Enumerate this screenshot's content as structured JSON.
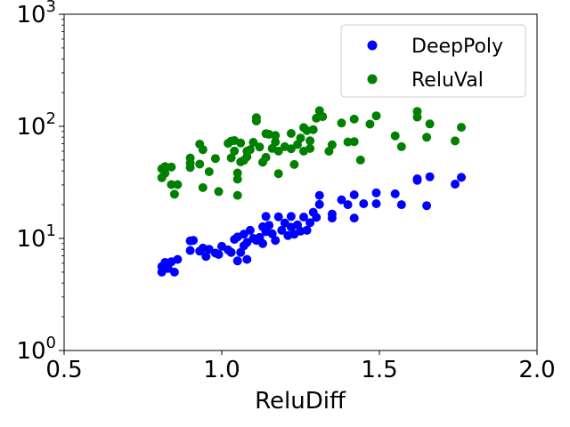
{
  "chart_data": {
    "type": "scatter",
    "xlabel": "ReluDiff",
    "ylabel": "",
    "xlim": [
      0.5,
      2.0
    ],
    "ylim": [
      1,
      1000
    ],
    "yscale": "log",
    "x_ticks": [
      0.5,
      1.0,
      1.5,
      2.0
    ],
    "x_tick_labels": [
      "0.5",
      "1.0",
      "1.5",
      "2.0"
    ],
    "y_tick_labels": [
      {
        "base": "10",
        "exp": "0",
        "value": 1
      },
      {
        "base": "10",
        "exp": "1",
        "value": 10
      },
      {
        "base": "10",
        "exp": "2",
        "value": 100
      },
      {
        "base": "10",
        "exp": "3",
        "value": 1000
      }
    ],
    "grid": false,
    "legend": "top-right",
    "series": [
      {
        "name": "DeepPoly",
        "color": "#0000ff",
        "points": [
          [
            0.81,
            5.0
          ],
          [
            0.81,
            5.6
          ],
          [
            0.82,
            6.1
          ],
          [
            0.83,
            5.4
          ],
          [
            0.84,
            6.2
          ],
          [
            0.85,
            5.0
          ],
          [
            0.86,
            6.5
          ],
          [
            0.9,
            7.8
          ],
          [
            0.9,
            9.5
          ],
          [
            0.91,
            9.6
          ],
          [
            0.93,
            7.7
          ],
          [
            0.94,
            8.2
          ],
          [
            0.95,
            6.9
          ],
          [
            0.96,
            8.0
          ],
          [
            0.98,
            7.4
          ],
          [
            0.99,
            7.2
          ],
          [
            1.0,
            8.5
          ],
          [
            1.02,
            7.9
          ],
          [
            1.03,
            7.5
          ],
          [
            1.04,
            9.8
          ],
          [
            1.05,
            10.3
          ],
          [
            1.05,
            6.3
          ],
          [
            1.06,
            7.5
          ],
          [
            1.07,
            8.6
          ],
          [
            1.07,
            10.9
          ],
          [
            1.08,
            6.5
          ],
          [
            1.08,
            9.2
          ],
          [
            1.09,
            11.8
          ],
          [
            1.1,
            10.0
          ],
          [
            1.11,
            9.6
          ],
          [
            1.12,
            10.2
          ],
          [
            1.13,
            12.7
          ],
          [
            1.13,
            9.0
          ],
          [
            1.14,
            11.5
          ],
          [
            1.14,
            15.7
          ],
          [
            1.15,
            13.1
          ],
          [
            1.16,
            11.0
          ],
          [
            1.17,
            9.6
          ],
          [
            1.18,
            15.6
          ],
          [
            1.19,
            11.8
          ],
          [
            1.2,
            13.7
          ],
          [
            1.21,
            10.6
          ],
          [
            1.22,
            15.7
          ],
          [
            1.22,
            12.6
          ],
          [
            1.23,
            10.9
          ],
          [
            1.24,
            13.2
          ],
          [
            1.25,
            11.6
          ],
          [
            1.26,
            15.5
          ],
          [
            1.27,
            11.8
          ],
          [
            1.28,
            13.8
          ],
          [
            1.29,
            17.1
          ],
          [
            1.3,
            15.4
          ],
          [
            1.31,
            20.1
          ],
          [
            1.31,
            24.2
          ],
          [
            1.35,
            15.2
          ],
          [
            1.35,
            16.5
          ],
          [
            1.38,
            22.1
          ],
          [
            1.4,
            20.0
          ],
          [
            1.42,
            15.2
          ],
          [
            1.42,
            24.5
          ],
          [
            1.45,
            20.4
          ],
          [
            1.49,
            20.4
          ],
          [
            1.49,
            25.5
          ],
          [
            1.55,
            25.0
          ],
          [
            1.57,
            20.0
          ],
          [
            1.62,
            33.0
          ],
          [
            1.62,
            34.0
          ],
          [
            1.65,
            19.6
          ],
          [
            1.66,
            35.5
          ],
          [
            1.74,
            30.5
          ],
          [
            1.76,
            35.0
          ]
        ]
      },
      {
        "name": "ReluVal",
        "color": "#008000",
        "points": [
          [
            0.81,
            34.8
          ],
          [
            0.81,
            41.8
          ],
          [
            0.82,
            38.2
          ],
          [
            0.82,
            43.7
          ],
          [
            0.84,
            43.4
          ],
          [
            0.84,
            30.2
          ],
          [
            0.85,
            24.8
          ],
          [
            0.86,
            30.2
          ],
          [
            0.9,
            43.0
          ],
          [
            0.9,
            52.2
          ],
          [
            0.9,
            47.1
          ],
          [
            0.93,
            69.4
          ],
          [
            0.93,
            46.0
          ],
          [
            0.94,
            62.0
          ],
          [
            0.94,
            28.4
          ],
          [
            0.96,
            39.4
          ],
          [
            0.98,
            51.6
          ],
          [
            0.99,
            26.2
          ],
          [
            1.02,
            70.5
          ],
          [
            1.03,
            73.9
          ],
          [
            1.03,
            52.3
          ],
          [
            1.04,
            60.2
          ],
          [
            1.04,
            74.7
          ],
          [
            1.05,
            33.8
          ],
          [
            1.05,
            24.2
          ],
          [
            1.05,
            38.3
          ],
          [
            1.06,
            48.1
          ],
          [
            1.06,
            70.9
          ],
          [
            1.07,
            49.7
          ],
          [
            1.08,
            60.1
          ],
          [
            1.08,
            53.5
          ],
          [
            1.09,
            62.0
          ],
          [
            1.1,
            72.0
          ],
          [
            1.11,
            119.4
          ],
          [
            1.11,
            111.5
          ],
          [
            1.12,
            65.5
          ],
          [
            1.13,
            47.8
          ],
          [
            1.14,
            52.8
          ],
          [
            1.14,
            86.0
          ],
          [
            1.15,
            84.8
          ],
          [
            1.16,
            63.5
          ],
          [
            1.17,
            72.5
          ],
          [
            1.17,
            82.8
          ],
          [
            1.18,
            37.8
          ],
          [
            1.18,
            60.1
          ],
          [
            1.2,
            65.8
          ],
          [
            1.22,
            63.1
          ],
          [
            1.22,
            86.4
          ],
          [
            1.23,
            45.7
          ],
          [
            1.24,
            68.8
          ],
          [
            1.25,
            78.6
          ],
          [
            1.26,
            60.1
          ],
          [
            1.26,
            97.5
          ],
          [
            1.27,
            91.7
          ],
          [
            1.28,
            63.5
          ],
          [
            1.28,
            74.2
          ],
          [
            1.29,
            93.5
          ],
          [
            1.3,
            118.0
          ],
          [
            1.31,
            138.0
          ],
          [
            1.32,
            122.0
          ],
          [
            1.34,
            60.0
          ],
          [
            1.35,
            68.4
          ],
          [
            1.38,
            106.9
          ],
          [
            1.4,
            72.5
          ],
          [
            1.42,
            73.0
          ],
          [
            1.42,
            116.0
          ],
          [
            1.44,
            50.0
          ],
          [
            1.47,
            104.6
          ],
          [
            1.49,
            124.0
          ],
          [
            1.55,
            82.3
          ],
          [
            1.57,
            65.8
          ],
          [
            1.62,
            136.0
          ],
          [
            1.62,
            121.0
          ],
          [
            1.65,
            79.8
          ],
          [
            1.66,
            105.0
          ],
          [
            1.74,
            74.1
          ],
          [
            1.76,
            98.0
          ]
        ]
      }
    ]
  }
}
